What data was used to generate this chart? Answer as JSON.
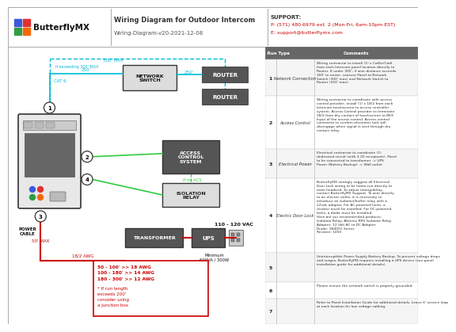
{
  "title": "Wiring Diagram for Outdoor Intercom",
  "subtitle": "Wiring-Diagram-v20-2021-12-08",
  "support_label": "SUPPORT:",
  "support_phone": "P: (571) 480.6979 ext. 2 (Mon-Fri, 6am-10pm EST)",
  "support_email": "E: support@butterflymx.com",
  "bg_color": "#ffffff",
  "wire_blue": "#00bcd4",
  "wire_green": "#2ecc40",
  "wire_red": "#cc0000",
  "text_cyan": "#00bcd4",
  "text_red": "#cc0000",
  "table_rows": [
    {
      "num": "1",
      "type": "Network Connection",
      "comment": "Wiring contractor to install (1) x Cat6e/Cat6\nfrom each Intercom panel location directly to\nRouter. If under 300', if wire distance exceeds\n300' to router, connect Panel to Network\nSwitch (300' max) and Network Switch to\nRouter (250' max)."
    },
    {
      "num": "2",
      "type": "Access Control",
      "comment": "Wiring contractor to coordinate with access\ncontrol provider, install (1) x 18/2 from each\nIntercom touchscreen to access controller\nsystem. Access Control provider to terminate\n18/2 from dry contact of touchscreen to REX\nInput of the access control. Access control\ncontractor to confirm electronic lock will\ndisengage when signal is sent through dry\ncontact relay."
    },
    {
      "num": "3",
      "type": "Electrical Power",
      "comment": "Electrical contractor to coordinate (1)\ndedicated circuit (with 3-20 receptacle). Panel\nto be connected to transformer -> UPS\nPower (Battery Backup) -> Wall outlet"
    },
    {
      "num": "4",
      "type": "Electric Door Lock",
      "comment": "ButterflyMX strongly suggest all Electrical\nDoor Lock wiring to be home-run directly to\nmain headend. To adjust timing/delay,\ncontact ButterflyMX Support. To wire directly\nto an electric strike, it is necessary to\nintroduce an isolation/buffer relay with a\n12vdc adapter. For AC-powered locks, a\nresistor much be installed. For DC-powered\nlocks, a diode must be installed.\nHere are our recommended products:\nIsolation Relay: Altronix RR5 Isolation Relay\nAdapter: 12 Volt AC to DC Adapter\nDiode: 1N4001 Series\nResistor: 1450"
    },
    {
      "num": "5",
      "type": "",
      "comment": "Uninterruptible Power Supply Battery Backup. To prevent voltage drops\nand surges, ButterflyMX requires installing a UPS device (see panel\ninstallation guide for additional details)."
    },
    {
      "num": "6",
      "type": "",
      "comment": "Please ensure the network switch is properly grounded."
    },
    {
      "num": "7",
      "type": "",
      "comment": "Refer to Panel Installation Guide for additional details. Leave 6' service loop\nat each location for low voltage cabling."
    }
  ]
}
